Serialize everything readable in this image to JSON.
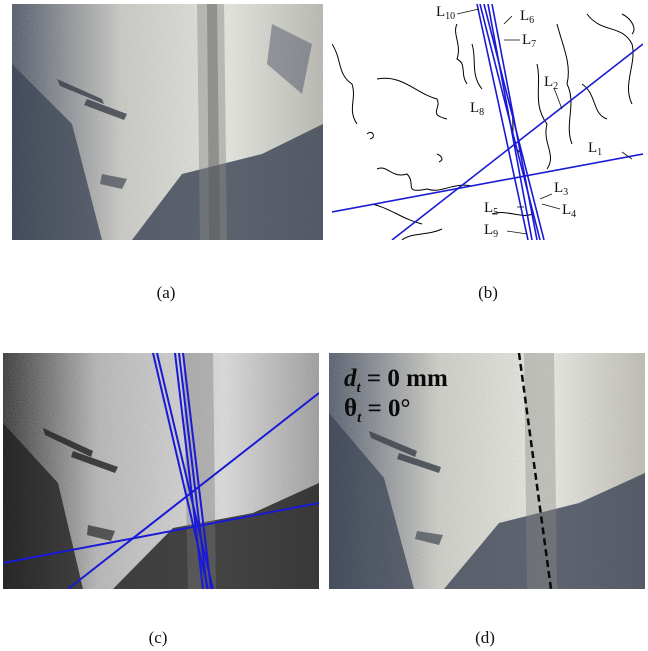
{
  "figure": {
    "panels": [
      {
        "id": "a",
        "caption": "(a)"
      },
      {
        "id": "b",
        "caption": "(b)"
      },
      {
        "id": "c",
        "caption": "(c)"
      },
      {
        "id": "d",
        "caption": "(d)"
      }
    ],
    "line_labels": [
      "L10",
      "L6",
      "L7",
      "L2",
      "L8",
      "L1",
      "L3",
      "L5",
      "L4",
      "L9"
    ],
    "overlay": {
      "d_symbol": "d",
      "d_sub": "t",
      "d_value": " = 0 mm",
      "theta_symbol": "θ",
      "theta_sub": "t",
      "theta_value": " = 0°"
    },
    "colors": {
      "lines": "#1a1ad6",
      "edges": "#000000"
    }
  }
}
